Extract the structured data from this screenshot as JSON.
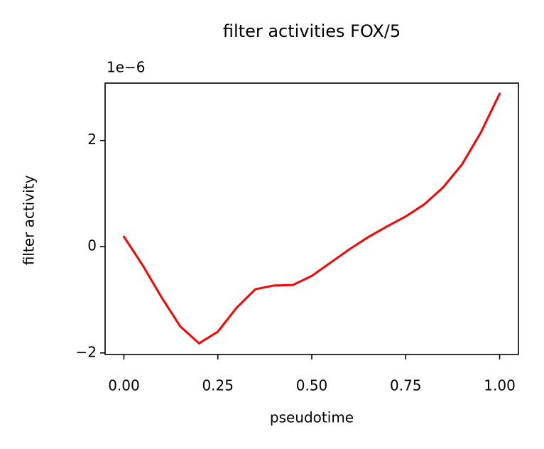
{
  "chart_data": {
    "type": "line",
    "title": "filter activities FOX/5",
    "x_label": "pseudotime",
    "y_label": "filter activity",
    "y_offset_label": "1e−6",
    "x": [
      0,
      0.05,
      0.1,
      0.15,
      0.2,
      0.25,
      0.3,
      0.35,
      0.4,
      0.45,
      0.5,
      0.55,
      0.6,
      0.65,
      0.7,
      0.75,
      0.8,
      0.85,
      0.9,
      0.95,
      1.0
    ],
    "series": [
      {
        "name": "FOX/5",
        "color": "#ff0000",
        "values": [
          0.19,
          -0.35,
          -0.95,
          -1.5,
          -1.82,
          -1.6,
          -1.15,
          -0.8,
          -0.73,
          -0.72,
          -0.55,
          -0.3,
          -0.05,
          0.18,
          0.38,
          0.57,
          0.8,
          1.12,
          1.55,
          2.15,
          2.88
        ]
      }
    ],
    "xlim": [
      -0.05,
      1.05
    ],
    "xticks": [
      {
        "value": 0,
        "label": "0.00"
      },
      {
        "value": 0.25,
        "label": "0.25"
      },
      {
        "value": 0.5,
        "label": "0.50"
      },
      {
        "value": 0.75,
        "label": "0.75"
      },
      {
        "value": 1,
        "label": "1.00"
      }
    ],
    "ylim": [
      -2.03,
      3.08
    ],
    "yticks": [
      {
        "value": -2,
        "label": "−2"
      },
      0,
      2
    ]
  }
}
